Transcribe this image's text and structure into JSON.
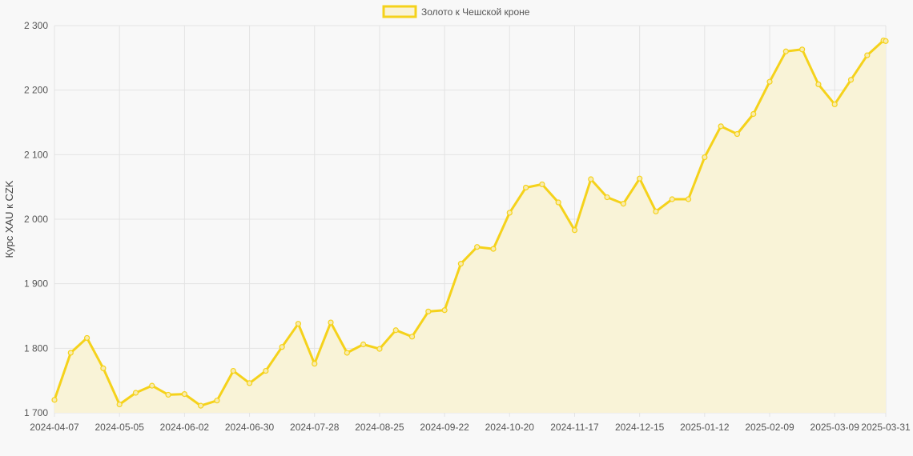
{
  "chart_data": {
    "type": "area",
    "legend": {
      "label": "Золото к Чешской кроне",
      "position": "top"
    },
    "ylabel": "Курс XAU к CZK",
    "ylim": [
      1700,
      2300
    ],
    "yticks": [
      1700,
      1800,
      1900,
      2000,
      2100,
      2200,
      2300
    ],
    "ytick_labels": [
      "1 700",
      "1 800",
      "1 900",
      "2 000",
      "2 100",
      "2 200",
      "2 300"
    ],
    "xtick_labels": [
      "2024-04-07",
      "2024-05-05",
      "2024-06-02",
      "2024-06-30",
      "2024-07-28",
      "2024-08-25",
      "2024-09-22",
      "2024-10-20",
      "2024-11-17",
      "2024-12-15",
      "2025-01-12",
      "2025-02-09",
      "2025-03-09",
      "2025-03-31"
    ],
    "grid": true,
    "colors": {
      "line": "#f5d21b",
      "fill": "#f9f3d7",
      "point_fill": "#f8ebb0"
    },
    "x": [
      "2024-04-07",
      "2024-04-14",
      "2024-04-21",
      "2024-04-28",
      "2024-05-05",
      "2024-05-12",
      "2024-05-19",
      "2024-05-26",
      "2024-06-02",
      "2024-06-09",
      "2024-06-16",
      "2024-06-23",
      "2024-06-30",
      "2024-07-07",
      "2024-07-14",
      "2024-07-21",
      "2024-07-28",
      "2024-08-04",
      "2024-08-11",
      "2024-08-18",
      "2024-08-25",
      "2024-09-01",
      "2024-09-08",
      "2024-09-15",
      "2024-09-22",
      "2024-09-29",
      "2024-10-06",
      "2024-10-13",
      "2024-10-20",
      "2024-10-27",
      "2024-11-03",
      "2024-11-10",
      "2024-11-17",
      "2024-11-24",
      "2024-12-01",
      "2024-12-08",
      "2024-12-15",
      "2024-12-22",
      "2024-12-29",
      "2025-01-05",
      "2025-01-12",
      "2025-01-19",
      "2025-01-26",
      "2025-02-02",
      "2025-02-09",
      "2025-02-16",
      "2025-02-23",
      "2025-03-02",
      "2025-03-09",
      "2025-03-16",
      "2025-03-23",
      "2025-03-30",
      "2025-03-31"
    ],
    "series": [
      {
        "name": "Золото к Чешской кроне",
        "values": [
          1720,
          1793,
          1816,
          1769,
          1713,
          1731,
          1742,
          1728,
          1729,
          1711,
          1719,
          1765,
          1746,
          1765,
          1802,
          1838,
          1776,
          1840,
          1793,
          1806,
          1799,
          1828,
          1818,
          1857,
          1859,
          1931,
          1957,
          1954,
          2010,
          2049,
          2054,
          2026,
          1983,
          2062,
          2034,
          2024,
          2063,
          2012,
          2031,
          2031,
          2096,
          2144,
          2132,
          2163,
          2213,
          2260,
          2263,
          2209,
          2178,
          2216,
          2254,
          2277,
          2276
        ]
      }
    ]
  }
}
